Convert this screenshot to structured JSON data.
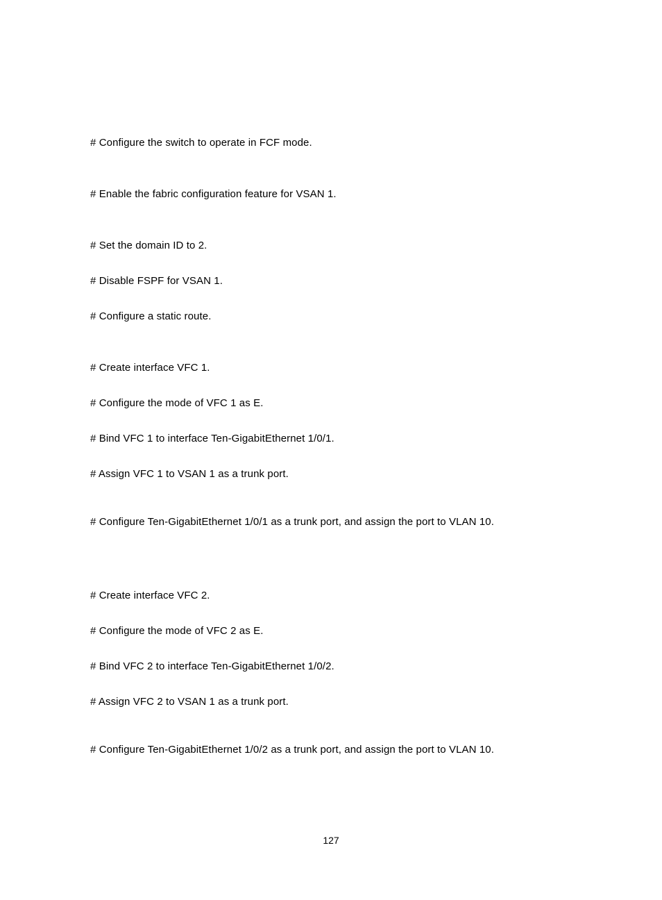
{
  "lines": [
    {
      "text": "# Configure the switch to operate in FCF mode.",
      "spacing": "config-line"
    },
    {
      "text": "# Enable the fabric configuration feature for VSAN 1.",
      "spacing": "config-line"
    },
    {
      "text": "# Set the domain ID to 2.",
      "spacing": "config-line tight"
    },
    {
      "text": "# Disable FSPF for VSAN 1.",
      "spacing": "config-line tight"
    },
    {
      "text": "# Configure a static route.",
      "spacing": "config-line"
    },
    {
      "text": "# Create interface VFC 1.",
      "spacing": "config-line tight"
    },
    {
      "text": "# Configure the mode of VFC 1 as E.",
      "spacing": "config-line tight"
    },
    {
      "text": "# Bind VFC 1 to interface Ten-GigabitEthernet 1/0/1.",
      "spacing": "config-line tight"
    },
    {
      "text": "# Assign VFC 1 to VSAN 1 as a trunk port.",
      "spacing": "config-line medium"
    },
    {
      "text": "# Configure Ten-GigabitEthernet 1/0/1 as a trunk port, and assign the port to VLAN 10.",
      "spacing": "config-line large"
    },
    {
      "text": "# Create interface VFC 2.",
      "spacing": "config-line tight"
    },
    {
      "text": "# Configure the mode of VFC 2 as E.",
      "spacing": "config-line tight"
    },
    {
      "text": "# Bind VFC 2 to interface Ten-GigabitEthernet 1/0/2.",
      "spacing": "config-line tight"
    },
    {
      "text": "# Assign VFC 2 to VSAN 1 as a trunk port.",
      "spacing": "config-line medium"
    },
    {
      "text": "# Configure Ten-GigabitEthernet 1/0/2 as a trunk port, and assign the port to VLAN 10.",
      "spacing": "config-line"
    }
  ],
  "page_number": "127"
}
